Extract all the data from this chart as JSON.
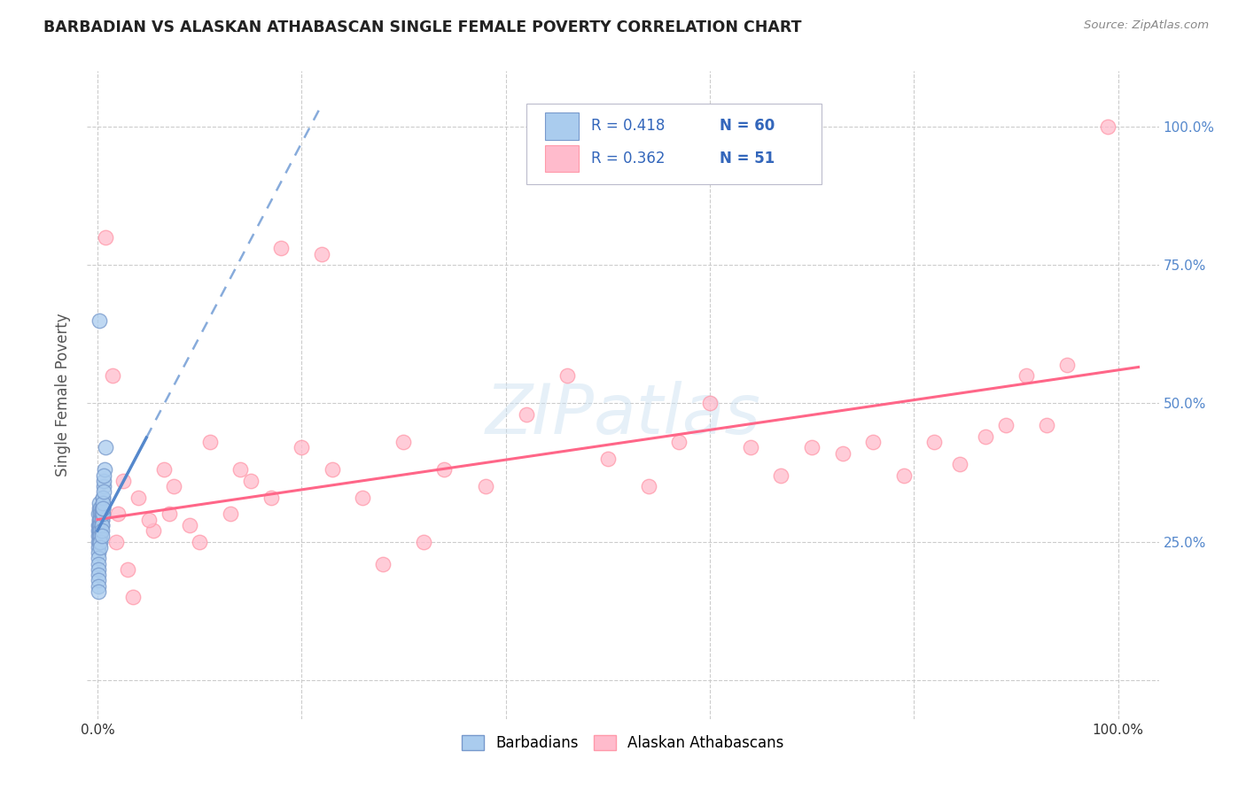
{
  "title": "BARBADIAN VS ALASKAN ATHABASCAN SINGLE FEMALE POVERTY CORRELATION CHART",
  "source": "Source: ZipAtlas.com",
  "ylabel": "Single Female Poverty",
  "blue_label": "Barbadians",
  "pink_label": "Alaskan Athabascans",
  "blue_R": 0.418,
  "blue_N": 60,
  "pink_R": 0.362,
  "pink_N": 51,
  "blue_scatter_color": "#aaccee",
  "blue_edge_color": "#7799cc",
  "pink_scatter_color": "#ffbbcc",
  "pink_edge_color": "#ff99aa",
  "trend_blue_color": "#5588cc",
  "trend_pink_color": "#ff6688",
  "grid_color": "#cccccc",
  "right_tick_color": "#5588cc",
  "blue_x": [
    0.001,
    0.002,
    0.001,
    0.003,
    0.002,
    0.001,
    0.002,
    0.001,
    0.003,
    0.001,
    0.002,
    0.001,
    0.002,
    0.001,
    0.003,
    0.001,
    0.002,
    0.001,
    0.002,
    0.001,
    0.003,
    0.001,
    0.002,
    0.001,
    0.003,
    0.002,
    0.001,
    0.002,
    0.001,
    0.002,
    0.004,
    0.003,
    0.004,
    0.003,
    0.004,
    0.003,
    0.004,
    0.003,
    0.004,
    0.003,
    0.005,
    0.004,
    0.005,
    0.004,
    0.005,
    0.004,
    0.005,
    0.004,
    0.005,
    0.004,
    0.006,
    0.005,
    0.006,
    0.005,
    0.006,
    0.005,
    0.007,
    0.006,
    0.002,
    0.008
  ],
  "blue_y": [
    0.3,
    0.29,
    0.28,
    0.3,
    0.31,
    0.27,
    0.28,
    0.26,
    0.29,
    0.25,
    0.32,
    0.24,
    0.27,
    0.23,
    0.31,
    0.22,
    0.29,
    0.21,
    0.28,
    0.2,
    0.3,
    0.19,
    0.28,
    0.18,
    0.29,
    0.27,
    0.17,
    0.26,
    0.16,
    0.25,
    0.3,
    0.28,
    0.31,
    0.27,
    0.29,
    0.26,
    0.3,
    0.25,
    0.28,
    0.24,
    0.32,
    0.3,
    0.31,
    0.29,
    0.33,
    0.28,
    0.3,
    0.27,
    0.31,
    0.26,
    0.35,
    0.33,
    0.36,
    0.32,
    0.34,
    0.31,
    0.38,
    0.37,
    0.65,
    0.42
  ],
  "pink_x": [
    0.005,
    0.008,
    0.015,
    0.02,
    0.025,
    0.03,
    0.04,
    0.055,
    0.065,
    0.075,
    0.09,
    0.11,
    0.13,
    0.15,
    0.17,
    0.2,
    0.23,
    0.26,
    0.3,
    0.34,
    0.38,
    0.42,
    0.46,
    0.5,
    0.54,
    0.57,
    0.6,
    0.64,
    0.67,
    0.7,
    0.73,
    0.76,
    0.79,
    0.82,
    0.845,
    0.87,
    0.89,
    0.91,
    0.93,
    0.95,
    0.018,
    0.035,
    0.05,
    0.07,
    0.1,
    0.14,
    0.18,
    0.22,
    0.28,
    0.32,
    0.99
  ],
  "pink_y": [
    0.32,
    0.8,
    0.55,
    0.3,
    0.36,
    0.2,
    0.33,
    0.27,
    0.38,
    0.35,
    0.28,
    0.43,
    0.3,
    0.36,
    0.33,
    0.42,
    0.38,
    0.33,
    0.43,
    0.38,
    0.35,
    0.48,
    0.55,
    0.4,
    0.35,
    0.43,
    0.5,
    0.42,
    0.37,
    0.42,
    0.41,
    0.43,
    0.37,
    0.43,
    0.39,
    0.44,
    0.46,
    0.55,
    0.46,
    0.57,
    0.25,
    0.15,
    0.29,
    0.3,
    0.25,
    0.38,
    0.78,
    0.77,
    0.21,
    0.25,
    1.0
  ],
  "blue_trend_x": [
    0.0,
    0.22
  ],
  "blue_trend_y_start": 0.27,
  "blue_trend_slope": 3.5,
  "pink_trend_x": [
    0.0,
    1.0
  ],
  "pink_trend_y_start": 0.29,
  "pink_trend_slope": 0.27,
  "xlim": [
    -0.01,
    1.04
  ],
  "ylim": [
    -0.07,
    1.1
  ]
}
